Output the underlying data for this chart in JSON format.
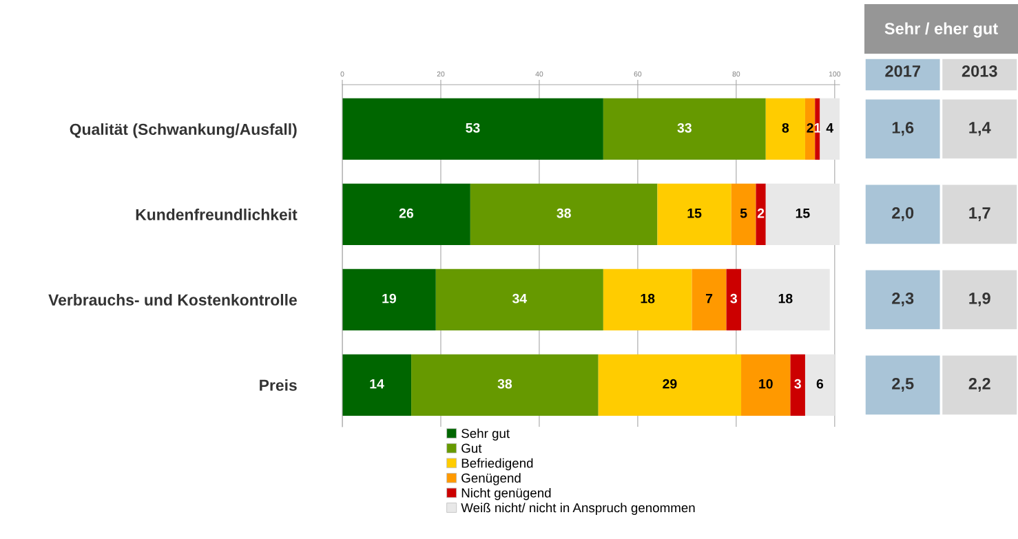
{
  "chart_data": [
    {
      "type": "bar",
      "orientation": "horizontal",
      "stacked": true,
      "categories": [
        "Qualität (Schwankung/Ausfall)",
        "Kundenfreundlichkeit",
        "Verbrauchs- und Kostenkontrolle",
        "Preis"
      ],
      "series": [
        {
          "name": "Sehr gut",
          "color": "#006600",
          "values": [
            53,
            26,
            19,
            14
          ]
        },
        {
          "name": "Gut",
          "color": "#669900",
          "values": [
            33,
            38,
            34,
            38
          ]
        },
        {
          "name": "Befriedigend",
          "color": "#ffcc00",
          "values": [
            8,
            15,
            18,
            29
          ]
        },
        {
          "name": "Genügend",
          "color": "#ff9900",
          "values": [
            2,
            5,
            7,
            10
          ]
        },
        {
          "name": "Nicht genügend",
          "color": "#cc0000",
          "values": [
            1,
            2,
            3,
            3
          ]
        },
        {
          "name": "Weiß nicht/ nicht in Anspruch genommen",
          "color": "#e8e8e8",
          "values": [
            4,
            15,
            18,
            6
          ]
        }
      ],
      "xlim": [
        0,
        101
      ],
      "xticks": [
        0,
        20,
        40,
        60,
        80,
        100
      ],
      "grid": "x",
      "legend": "bottom",
      "data_labels": true
    },
    {
      "type": "heatmap",
      "title": "Sehr / eher gut",
      "categories": [
        "2017",
        "2013"
      ],
      "y_categories": [
        null,
        null,
        null,
        null
      ],
      "cells": [
        [
          1.6,
          1.4
        ],
        [
          2.0,
          1.7
        ],
        [
          2.3,
          1.9
        ],
        [
          2.5,
          2.2
        ]
      ],
      "cell_labels": [
        [
          "1,6",
          "1,4"
        ],
        [
          "2,0",
          "1,7"
        ],
        [
          "2,3",
          "1,9"
        ],
        [
          "2,5",
          "2,2"
        ]
      ],
      "colors": [
        "#a9c4d7",
        "#d9d9d9"
      ]
    }
  ]
}
